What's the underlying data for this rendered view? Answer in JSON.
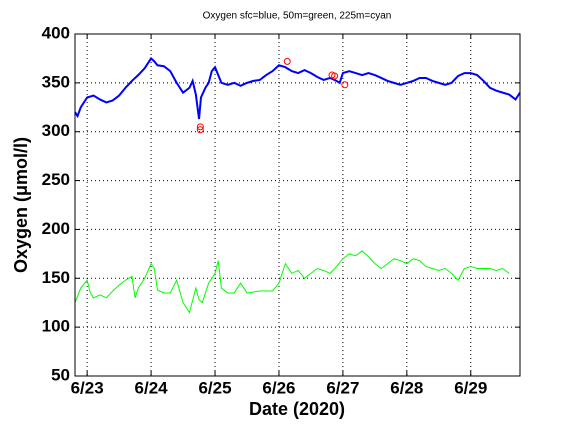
{
  "chart_data": {
    "type": "line",
    "title": "Oxygen sfc=blue, 50m=green, 225m=cyan",
    "x_label": "Date (2020)",
    "y_label": "Oxygen (μmol/l)",
    "xlim": [
      22.81,
      29.77
    ],
    "xticks": [
      {
        "value": 23,
        "label": "6/23"
      },
      {
        "value": 24,
        "label": "6/24"
      },
      {
        "value": 25,
        "label": "6/25"
      },
      {
        "value": 26,
        "label": "6/26"
      },
      {
        "value": 27,
        "label": "6/27"
      },
      {
        "value": 28,
        "label": "6/28"
      },
      {
        "value": 29,
        "label": "6/29"
      }
    ],
    "ylim": [
      50,
      400
    ],
    "yticks": [
      50,
      100,
      150,
      200,
      250,
      300,
      350,
      400
    ],
    "grid": true,
    "series": [
      {
        "color": "#0000ff",
        "marker": "none",
        "x": [
          22.81,
          22.85,
          22.9,
          23.0,
          23.1,
          23.2,
          23.3,
          23.4,
          23.5,
          23.6,
          23.7,
          23.8,
          23.9,
          24.0,
          24.05,
          24.1,
          24.2,
          24.3,
          24.4,
          24.5,
          24.6,
          24.65,
          24.7,
          24.75,
          24.78,
          24.85,
          24.9,
          24.95,
          25.0,
          25.05,
          25.1,
          25.2,
          25.3,
          25.4,
          25.5,
          25.6,
          25.7,
          25.8,
          25.9,
          26.0,
          26.1,
          26.2,
          26.3,
          26.4,
          26.5,
          26.6,
          26.7,
          26.8,
          26.9,
          26.95,
          27.0,
          27.1,
          27.2,
          27.3,
          27.4,
          27.5,
          27.6,
          27.7,
          27.8,
          27.9,
          28.0,
          28.1,
          28.2,
          28.3,
          28.4,
          28.5,
          28.6,
          28.7,
          28.8,
          28.9,
          29.0,
          29.1,
          29.2,
          29.3,
          29.4,
          29.5,
          29.6,
          29.7,
          29.77
        ],
        "values": [
          320,
          316,
          325,
          335,
          337,
          333,
          330,
          332,
          337,
          345,
          352,
          358,
          365,
          375,
          372,
          368,
          367,
          362,
          350,
          340,
          345,
          352,
          338,
          313,
          335,
          345,
          350,
          362,
          366,
          358,
          350,
          348,
          350,
          347,
          350,
          352,
          353,
          358,
          362,
          368,
          366,
          362,
          360,
          363,
          360,
          356,
          353,
          355,
          352,
          350,
          360,
          362,
          360,
          358,
          360,
          358,
          355,
          352,
          350,
          348,
          350,
          352,
          355,
          355,
          352,
          350,
          348,
          350,
          357,
          360,
          360,
          358,
          352,
          345,
          342,
          340,
          338,
          333,
          340
        ]
      },
      {
        "color": "#00ff00",
        "marker": "none",
        "x": [
          22.81,
          22.9,
          23.0,
          23.05,
          23.1,
          23.2,
          23.3,
          23.4,
          23.5,
          23.6,
          23.7,
          23.75,
          23.8,
          23.9,
          24.0,
          24.05,
          24.1,
          24.2,
          24.3,
          24.4,
          24.5,
          24.6,
          24.7,
          24.75,
          24.8,
          24.9,
          25.0,
          25.05,
          25.1,
          25.2,
          25.3,
          25.4,
          25.5,
          25.6,
          25.7,
          25.8,
          25.9,
          26.0,
          26.1,
          26.2,
          26.3,
          26.4,
          26.5,
          26.6,
          26.7,
          26.8,
          26.9,
          27.0,
          27.1,
          27.2,
          27.3,
          27.4,
          27.5,
          27.6,
          27.7,
          27.8,
          27.9,
          28.0,
          28.1,
          28.2,
          28.3,
          28.4,
          28.5,
          28.6,
          28.7,
          28.8,
          28.9,
          29.0,
          29.1,
          29.2,
          29.3,
          29.4,
          29.5,
          29.6
        ],
        "values": [
          125,
          140,
          148,
          135,
          130,
          133,
          130,
          137,
          143,
          148,
          152,
          130,
          140,
          150,
          165,
          160,
          138,
          135,
          135,
          148,
          125,
          115,
          140,
          128,
          125,
          145,
          155,
          168,
          140,
          135,
          135,
          145,
          135,
          136,
          137,
          137,
          137,
          145,
          165,
          155,
          158,
          150,
          155,
          160,
          158,
          155,
          162,
          170,
          175,
          173,
          178,
          172,
          165,
          160,
          165,
          170,
          168,
          165,
          170,
          168,
          162,
          160,
          158,
          160,
          155,
          148,
          160,
          162,
          160,
          160,
          160,
          158,
          160,
          155
        ]
      },
      {
        "color": "#ff0000",
        "marker": "o",
        "x": [
          24.77,
          24.77,
          26.13,
          26.83,
          26.87,
          27.03
        ],
        "values": [
          305,
          302,
          372,
          358,
          357,
          348
        ]
      }
    ]
  }
}
